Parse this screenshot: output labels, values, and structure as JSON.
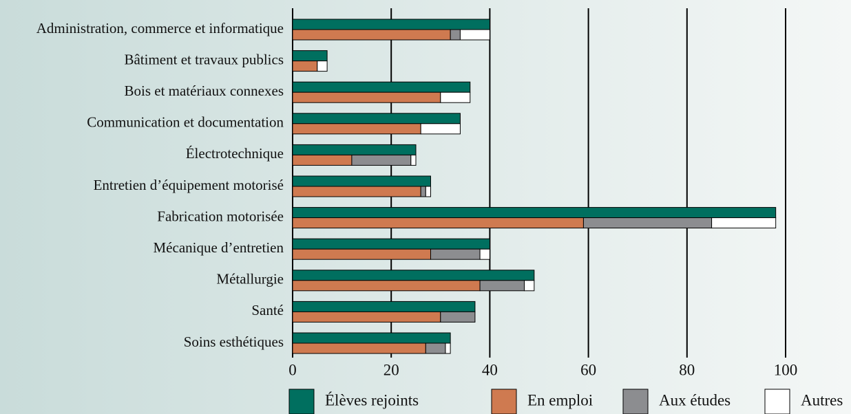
{
  "chart_data": {
    "type": "bar",
    "categories": [
      "Administration, commerce et informatique",
      "Bâtiment et travaux publics",
      "Bois et matériaux connexes",
      "Communication et documentation",
      "Électrotechnique",
      "Entretien d’équipement motorisé",
      "Fabrication motorisée",
      "Mécanique d’entretien",
      "Métallurgie",
      "Santé",
      "Soins esthétiques"
    ],
    "series": [
      {
        "name": "Élèves rejoints",
        "color": "#006f5f",
        "values": [
          40,
          7,
          36,
          34,
          25,
          28,
          98,
          40,
          49,
          37,
          32
        ]
      },
      {
        "name": "En emploi",
        "color": "#cf7a50",
        "values": [
          32,
          5,
          30,
          26,
          12,
          26,
          59,
          28,
          38,
          30,
          27
        ]
      },
      {
        "name": "Aux études",
        "color": "#8c8d90",
        "values": [
          2,
          0,
          0,
          0,
          12,
          1,
          26,
          10,
          9,
          7,
          4
        ]
      },
      {
        "name": "Autres",
        "color": "#ffffff",
        "values": [
          6,
          2,
          6,
          8,
          1,
          1,
          13,
          2,
          2,
          0,
          1
        ]
      }
    ],
    "xlim": [
      0,
      100
    ],
    "xticks": [
      0,
      20,
      40,
      60,
      80,
      100
    ],
    "grid": true
  }
}
